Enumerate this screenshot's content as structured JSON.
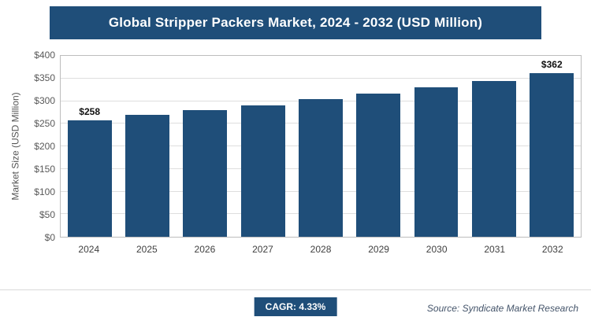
{
  "header": {
    "title": "Global Stripper Packers Market, 2024 - 2032 (USD Million)"
  },
  "chart_data": {
    "type": "bar",
    "title": "Global Stripper Packers Market, 2024 - 2032 (USD Million)",
    "categories": [
      "2024",
      "2025",
      "2026",
      "2027",
      "2028",
      "2029",
      "2030",
      "2031",
      "2032"
    ],
    "values": [
      258,
      269,
      280,
      291,
      304,
      317,
      330,
      345,
      362
    ],
    "bar_labels": [
      "$258",
      "",
      "",
      "",
      "",
      "",
      "",
      "",
      "$362"
    ],
    "xlabel": "",
    "ylabel": "Market Size (USD Million)",
    "ylim": [
      0,
      400
    ],
    "ytick_step": 50,
    "ytick_labels": [
      "$0",
      "$50",
      "$100",
      "$150",
      "$200",
      "$250",
      "$300",
      "$350",
      "$400"
    ],
    "grid": true,
    "legend": "none",
    "bar_color": "#1f4e79"
  },
  "footer": {
    "cagr_label": "CAGR: 4.33%",
    "source": "Source: Syndicate Market Research"
  },
  "colors": {
    "accent": "#1f4e79",
    "gridline": "#dedede",
    "plot_border": "#bdbdbd"
  }
}
